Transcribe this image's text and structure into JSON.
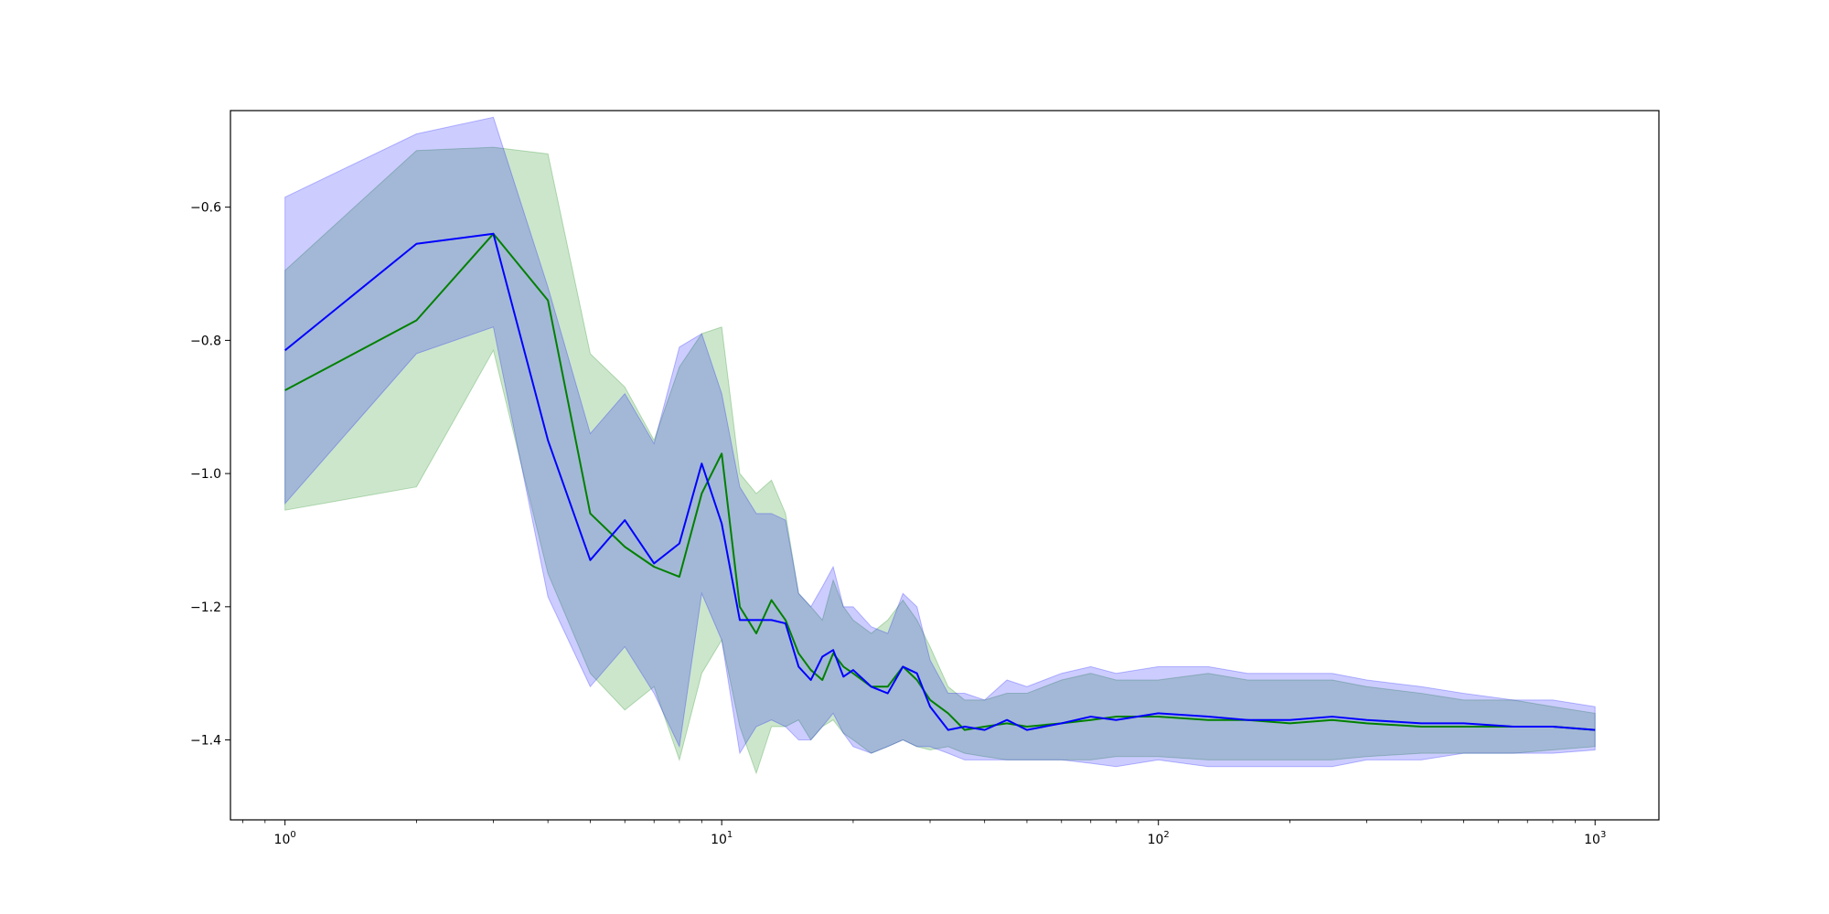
{
  "chart_data": {
    "type": "line",
    "title": "",
    "xlabel": "",
    "ylabel": "",
    "xscale": "log",
    "xlim": [
      0.75,
      1400
    ],
    "ylim": [
      -1.52,
      -0.455
    ],
    "grid": false,
    "legend": "none",
    "x_tick_labels": [
      {
        "value": 1,
        "base": "10",
        "exp": "0"
      },
      {
        "value": 10,
        "base": "10",
        "exp": "1"
      },
      {
        "value": 100,
        "base": "10",
        "exp": "2"
      },
      {
        "value": 1000,
        "base": "10",
        "exp": "3"
      }
    ],
    "y_tick_labels": [
      {
        "value": -0.6,
        "label": "−0.6"
      },
      {
        "value": -0.8,
        "label": "−0.8"
      },
      {
        "value": -1.0,
        "label": "−1.0"
      },
      {
        "value": -1.2,
        "label": "−1.2"
      },
      {
        "value": -1.4,
        "label": "−1.4"
      }
    ],
    "series": [
      {
        "color": "#008000",
        "band_color": "#008000",
        "x": [
          1,
          2,
          3,
          4,
          5,
          6,
          7,
          8,
          9,
          10,
          11,
          12,
          13,
          14,
          15,
          16,
          17,
          18,
          19,
          20,
          22,
          24,
          26,
          28,
          30,
          33,
          36,
          40,
          45,
          50,
          60,
          70,
          80,
          100,
          130,
          160,
          200,
          250,
          300,
          400,
          500,
          650,
          800,
          1000
        ],
        "y": [
          -0.875,
          -0.77,
          -0.64,
          -0.74,
          -1.06,
          -1.11,
          -1.14,
          -1.155,
          -1.03,
          -0.97,
          -1.2,
          -1.24,
          -1.19,
          -1.22,
          -1.27,
          -1.295,
          -1.31,
          -1.27,
          -1.29,
          -1.3,
          -1.32,
          -1.32,
          -1.29,
          -1.31,
          -1.34,
          -1.36,
          -1.385,
          -1.38,
          -1.375,
          -1.38,
          -1.375,
          -1.37,
          -1.365,
          -1.365,
          -1.37,
          -1.37,
          -1.375,
          -1.37,
          -1.375,
          -1.38,
          -1.38,
          -1.38,
          -1.38,
          -1.385
        ],
        "lower": [
          -1.055,
          -1.02,
          -0.815,
          -1.15,
          -1.3,
          -1.355,
          -1.32,
          -1.43,
          -1.3,
          -1.25,
          -1.38,
          -1.45,
          -1.38,
          -1.38,
          -1.37,
          -1.4,
          -1.38,
          -1.37,
          -1.39,
          -1.4,
          -1.42,
          -1.41,
          -1.4,
          -1.41,
          -1.415,
          -1.41,
          -1.42,
          -1.425,
          -1.43,
          -1.43,
          -1.43,
          -1.43,
          -1.425,
          -1.425,
          -1.43,
          -1.43,
          -1.43,
          -1.43,
          -1.425,
          -1.42,
          -1.42,
          -1.42,
          -1.415,
          -1.41
        ],
        "upper": [
          -0.695,
          -0.515,
          -0.51,
          -0.52,
          -0.82,
          -0.87,
          -0.95,
          -0.84,
          -0.79,
          -0.78,
          -1.0,
          -1.03,
          -1.01,
          -1.06,
          -1.18,
          -1.2,
          -1.22,
          -1.16,
          -1.2,
          -1.22,
          -1.24,
          -1.22,
          -1.19,
          -1.22,
          -1.26,
          -1.32,
          -1.34,
          -1.34,
          -1.33,
          -1.33,
          -1.31,
          -1.3,
          -1.31,
          -1.31,
          -1.3,
          -1.31,
          -1.31,
          -1.31,
          -1.32,
          -1.33,
          -1.34,
          -1.34,
          -1.35,
          -1.36
        ]
      },
      {
        "color": "#0000ff",
        "band_color": "#0000ff",
        "x": [
          1,
          2,
          3,
          4,
          5,
          6,
          7,
          8,
          9,
          10,
          11,
          12,
          13,
          14,
          15,
          16,
          17,
          18,
          19,
          20,
          22,
          24,
          26,
          28,
          30,
          33,
          36,
          40,
          45,
          50,
          60,
          70,
          80,
          100,
          130,
          160,
          200,
          250,
          300,
          400,
          500,
          650,
          800,
          1000
        ],
        "y": [
          -0.815,
          -0.655,
          -0.64,
          -0.95,
          -1.13,
          -1.07,
          -1.135,
          -1.105,
          -0.985,
          -1.075,
          -1.22,
          -1.22,
          -1.22,
          -1.225,
          -1.29,
          -1.31,
          -1.275,
          -1.265,
          -1.305,
          -1.295,
          -1.32,
          -1.33,
          -1.29,
          -1.3,
          -1.35,
          -1.385,
          -1.38,
          -1.385,
          -1.37,
          -1.385,
          -1.375,
          -1.365,
          -1.37,
          -1.36,
          -1.365,
          -1.37,
          -1.37,
          -1.365,
          -1.37,
          -1.375,
          -1.375,
          -1.38,
          -1.38,
          -1.385
        ],
        "lower": [
          -1.045,
          -0.82,
          -0.78,
          -1.185,
          -1.32,
          -1.26,
          -1.33,
          -1.41,
          -1.18,
          -1.25,
          -1.42,
          -1.38,
          -1.37,
          -1.38,
          -1.4,
          -1.4,
          -1.38,
          -1.36,
          -1.39,
          -1.41,
          -1.42,
          -1.41,
          -1.4,
          -1.41,
          -1.41,
          -1.42,
          -1.43,
          -1.43,
          -1.43,
          -1.43,
          -1.43,
          -1.435,
          -1.44,
          -1.43,
          -1.44,
          -1.44,
          -1.44,
          -1.44,
          -1.43,
          -1.43,
          -1.42,
          -1.42,
          -1.42,
          -1.415
        ],
        "upper": [
          -0.585,
          -0.49,
          -0.465,
          -0.72,
          -0.94,
          -0.88,
          -0.955,
          -0.81,
          -0.79,
          -0.88,
          -1.02,
          -1.06,
          -1.06,
          -1.07,
          -1.18,
          -1.2,
          -1.17,
          -1.14,
          -1.2,
          -1.2,
          -1.23,
          -1.24,
          -1.18,
          -1.2,
          -1.28,
          -1.33,
          -1.33,
          -1.34,
          -1.31,
          -1.32,
          -1.3,
          -1.29,
          -1.3,
          -1.29,
          -1.29,
          -1.3,
          -1.3,
          -1.3,
          -1.31,
          -1.32,
          -1.33,
          -1.34,
          -1.34,
          -1.35
        ]
      }
    ]
  }
}
